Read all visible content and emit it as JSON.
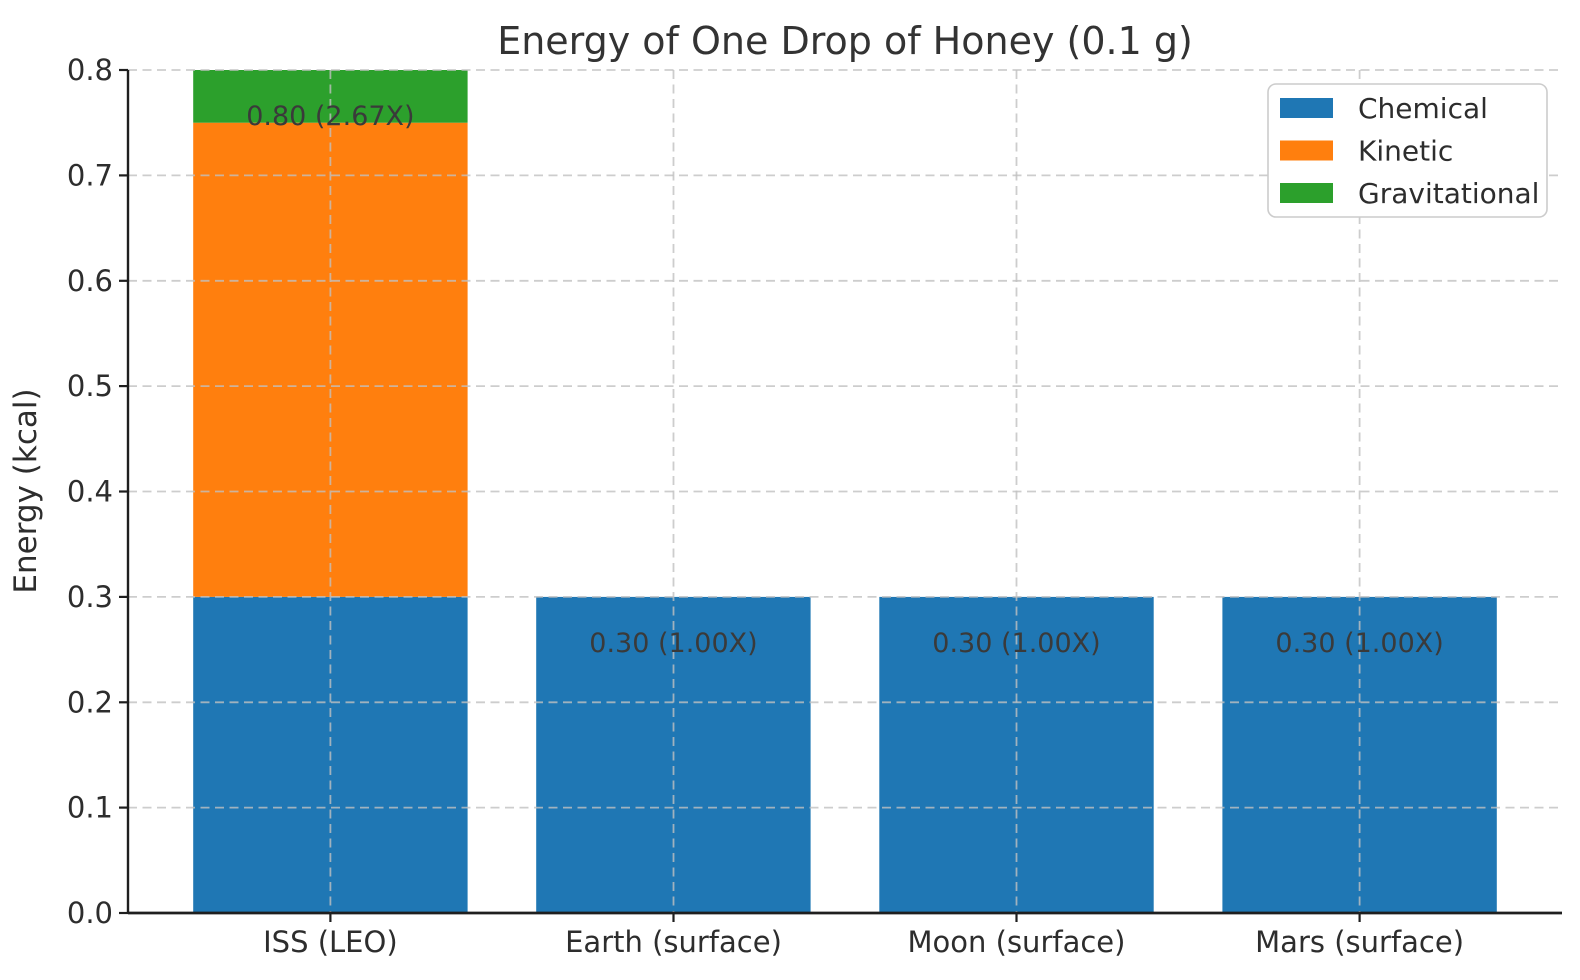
{
  "chart_data": {
    "type": "bar",
    "stacked": true,
    "title": "Energy of One Drop of Honey (0.1 g)",
    "xlabel": "",
    "ylabel": "Energy (kcal)",
    "categories": [
      "ISS (LEO)",
      "Earth (surface)",
      "Moon (surface)",
      "Mars (surface)"
    ],
    "series": [
      {
        "name": "Chemical",
        "color": "#1f77b4",
        "values": [
          0.3,
          0.3,
          0.3,
          0.3
        ]
      },
      {
        "name": "Kinetic",
        "color": "#ff7f0e",
        "values": [
          0.45,
          0.0,
          0.0,
          0.0
        ]
      },
      {
        "name": "Gravitational",
        "color": "#2ca02c",
        "values": [
          0.05,
          0.0,
          0.0,
          0.0
        ]
      }
    ],
    "totals": [
      0.8,
      0.3,
      0.3,
      0.3
    ],
    "bar_labels": [
      "0.80 (2.67X)",
      "0.30 (1.00X)",
      "0.30 (1.00X)",
      "0.30 (1.00X)"
    ],
    "ylim": [
      0,
      0.8
    ],
    "yticks": [
      0.0,
      0.1,
      0.2,
      0.3,
      0.4,
      0.5,
      0.6,
      0.7,
      0.8
    ],
    "ytick_labels": [
      "0.0",
      "0.1",
      "0.2",
      "0.3",
      "0.4",
      "0.5",
      "0.6",
      "0.7",
      "0.8"
    ],
    "grid": {
      "style": "dashed",
      "axes": "both",
      "above_bars": true
    },
    "legend": {
      "position": "upper right",
      "entries": [
        "Chemical",
        "Kinetic",
        "Gravitational"
      ]
    },
    "colors": {
      "background": "#ffffff",
      "spine": "#1f1f1f",
      "tick_label": "#2d2d2d",
      "title": "#333333",
      "annotation": "#3a3a3a",
      "grid": "#c0c0c0",
      "legend_border": "#cccccc"
    }
  }
}
